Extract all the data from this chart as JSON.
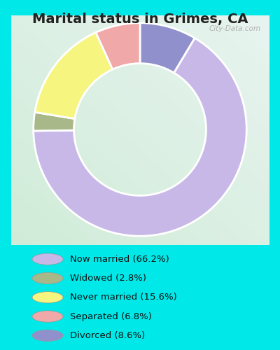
{
  "title": "Marital status in Grimes, CA",
  "slices": [
    66.2,
    2.8,
    15.6,
    6.8,
    8.6
  ],
  "colors": [
    "#c8b8e8",
    "#a8b888",
    "#f5f580",
    "#f0a8a8",
    "#9090cc"
  ],
  "labels": [
    "Now married (66.2%)",
    "Widowed (2.8%)",
    "Never married (15.6%)",
    "Separated (6.8%)",
    "Divorced (8.6%)"
  ],
  "legend_colors": [
    "#c8b8e8",
    "#a8b888",
    "#f5f580",
    "#f0a8a8",
    "#9090cc"
  ],
  "background_cyan": "#00e8e8",
  "chart_border_color": "#d0e8d0",
  "title_fontsize": 14,
  "watermark": "City-Data.com",
  "donut_width": 0.38
}
